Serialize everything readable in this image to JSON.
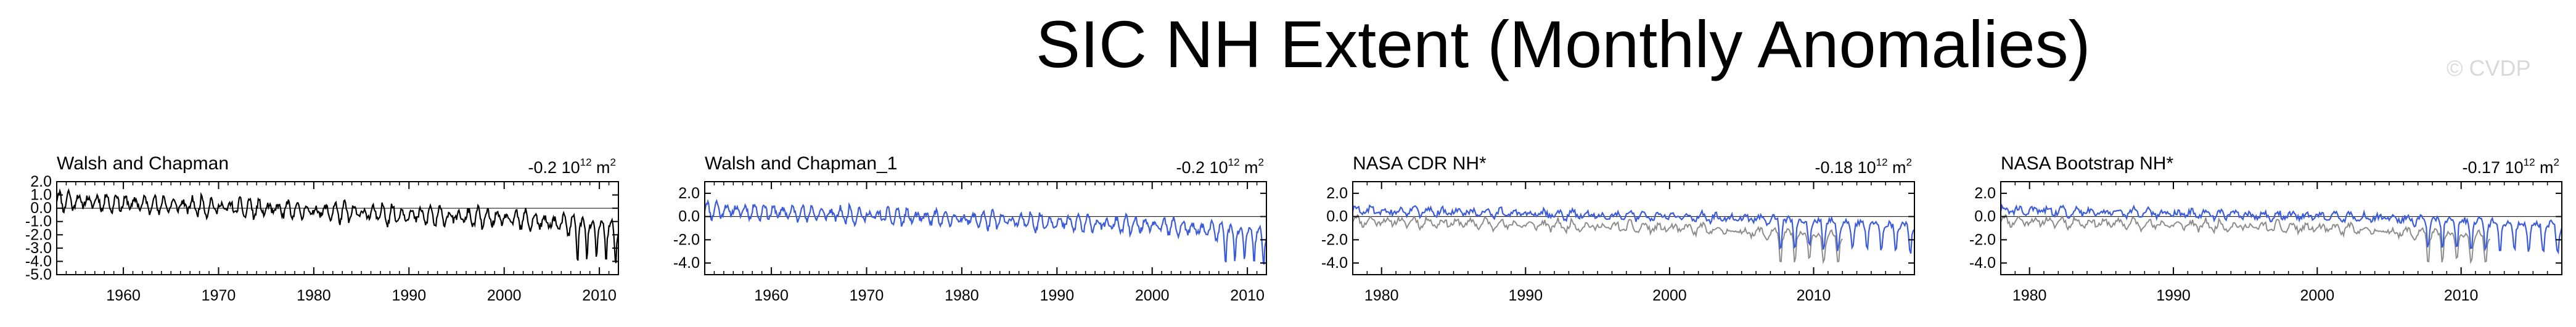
{
  "title": "SIC NH Extent (Monthly Anomalies)",
  "watermark": "© CVDP",
  "colors": {
    "primary": "#000000",
    "obs": "#3b5bdb",
    "ref": "#8c8c8c"
  },
  "chart_data": [
    {
      "type": "line",
      "title": "Walsh and Chapman",
      "trend_value": "-0.2",
      "trend_unit": "10",
      "trend_exp": "12",
      "trend_unit2": " m",
      "trend_exp2": "2",
      "xlim": [
        1953,
        2012
      ],
      "ylim": [
        -5.0,
        2.0
      ],
      "yticks": [
        2.0,
        1.0,
        0.0,
        -1.0,
        -2.0,
        -3.0,
        -4.0,
        -5.0
      ],
      "ytick_labels": [
        "2.0",
        "1.0",
        "0.0",
        "-1.0",
        "-2.0",
        "-3.0",
        "-4.0",
        "-5.0"
      ],
      "xticks": [
        1960,
        1970,
        1980,
        1990,
        2000,
        2010
      ],
      "series": [
        {
          "name": "Walsh and Chapman",
          "color": "#000000",
          "start": 1953,
          "end": 2012
        }
      ]
    },
    {
      "type": "line",
      "title": "Walsh and Chapman_1",
      "trend_value": "-0.2",
      "trend_unit": "10",
      "trend_exp": "12",
      "trend_unit2": " m",
      "trend_exp2": "2",
      "xlim": [
        1953,
        2012
      ],
      "ylim": [
        -5.0,
        3.0
      ],
      "yticks": [
        2.0,
        0.0,
        -2.0,
        -4.0
      ],
      "ytick_labels": [
        "2.0",
        "0.0",
        "-2.0",
        "-4.0"
      ],
      "xticks": [
        1960,
        1970,
        1980,
        1990,
        2000,
        2010
      ],
      "series": [
        {
          "name": "Walsh and Chapman_1",
          "color": "#3b5bdb",
          "start": 1953,
          "end": 2012
        }
      ]
    },
    {
      "type": "line",
      "title": "NASA CDR NH*",
      "trend_value": "-0.18",
      "trend_unit": "10",
      "trend_exp": "12",
      "trend_unit2": " m",
      "trend_exp2": "2",
      "xlim": [
        1978,
        2017
      ],
      "ylim": [
        -5.0,
        3.0
      ],
      "yticks": [
        2.0,
        0.0,
        -2.0,
        -4.0
      ],
      "ytick_labels": [
        "2.0",
        "0.0",
        "-2.0",
        "-4.0"
      ],
      "xticks": [
        1980,
        1990,
        2000,
        2010
      ],
      "series": [
        {
          "name": "reference",
          "color": "#8c8c8c",
          "start": 1978,
          "end": 2012
        },
        {
          "name": "NASA CDR NH*",
          "color": "#3b5bdb",
          "start": 1978,
          "end": 2017
        }
      ]
    },
    {
      "type": "line",
      "title": "NASA Bootstrap NH*",
      "trend_value": "-0.17",
      "trend_unit": "10",
      "trend_exp": "12",
      "trend_unit2": " m",
      "trend_exp2": "2",
      "xlim": [
        1978,
        2017
      ],
      "ylim": [
        -5.0,
        3.0
      ],
      "yticks": [
        2.0,
        0.0,
        -2.0,
        -4.0
      ],
      "ytick_labels": [
        "2.0",
        "0.0",
        "-2.0",
        "-4.0"
      ],
      "xticks": [
        1980,
        1990,
        2000,
        2010
      ],
      "series": [
        {
          "name": "reference",
          "color": "#8c8c8c",
          "start": 1978,
          "end": 2012
        },
        {
          "name": "NASA Bootstrap NH*",
          "color": "#3b5bdb",
          "start": 1978,
          "end": 2017
        }
      ]
    }
  ]
}
